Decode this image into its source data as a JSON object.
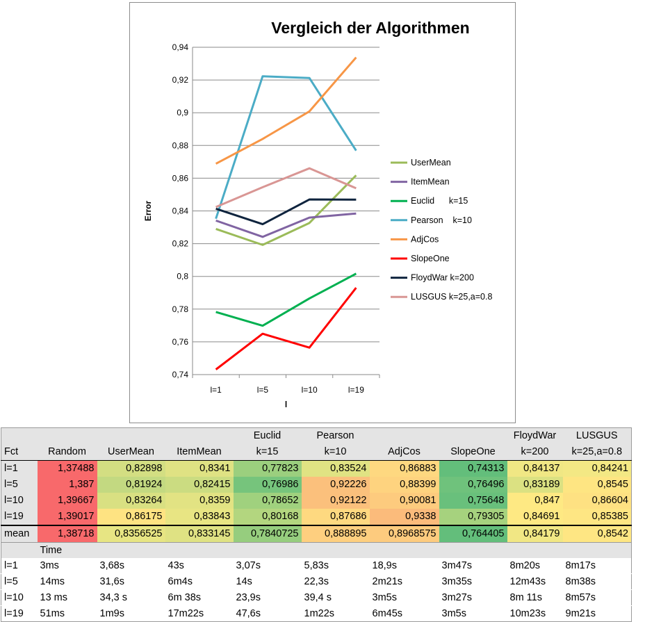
{
  "chart_data": {
    "type": "line",
    "title": "Vergleich der Algorithmen",
    "xlabel": "l",
    "ylabel": "Error",
    "categories": [
      "l=1",
      "l=5",
      "l=10",
      "l=19"
    ],
    "ylim": [
      0.74,
      0.94
    ],
    "yticks": [
      "0,74",
      "0,76",
      "0,78",
      "0,8",
      "0,82",
      "0,84",
      "0,86",
      "0,88",
      "0,9",
      "0,92",
      "0,94"
    ],
    "grid": true,
    "legend_position": "right",
    "series": [
      {
        "name": "UserMean",
        "color": "#9bbb59",
        "values": [
          0.82898,
          0.81924,
          0.83264,
          0.86175
        ]
      },
      {
        "name": "ItemMean",
        "color": "#8064a2",
        "values": [
          0.8341,
          0.82415,
          0.8359,
          0.83843
        ]
      },
      {
        "name": "Euclid      k=15",
        "color": "#00b050",
        "values": [
          0.77823,
          0.76986,
          0.78652,
          0.80168
        ]
      },
      {
        "name": "Pearson    k=10",
        "color": "#4bacc6",
        "values": [
          0.83524,
          0.92226,
          0.92122,
          0.87686
        ]
      },
      {
        "name": "AdjCos",
        "color": "#f79646",
        "values": [
          0.86883,
          0.88399,
          0.90081,
          0.9338
        ]
      },
      {
        "name": "SlopeOne",
        "color": "#ff0000",
        "values": [
          0.74313,
          0.76496,
          0.75648,
          0.79305
        ]
      },
      {
        "name": "FloydWar k=200",
        "color": "#0f243e",
        "values": [
          0.84137,
          0.83189,
          0.847,
          0.84691
        ]
      },
      {
        "name": "LUSGUS k=25,a=0.8",
        "color": "#d99694",
        "values": [
          0.84241,
          0.8545,
          0.86604,
          0.85385
        ]
      }
    ]
  },
  "table": {
    "fct_label": "Fct",
    "columns": [
      {
        "line1": "",
        "line2": "Random"
      },
      {
        "line1": "",
        "line2": "UserMean"
      },
      {
        "line1": "",
        "line2": "ItemMean"
      },
      {
        "line1": "Euclid",
        "line2": "k=15"
      },
      {
        "line1": "Pearson",
        "line2": "k=10"
      },
      {
        "line1": "",
        "line2": "AdjCos"
      },
      {
        "line1": "",
        "line2": "SlopeOne"
      },
      {
        "line1": "FloydWar",
        "line2": "k=200"
      },
      {
        "line1": "LUSGUS",
        "line2": "k=25,a=0.8"
      }
    ],
    "error_rows": [
      {
        "label": "l=1",
        "cells": [
          "1,37488",
          "0,82898",
          "0,8341",
          "0,77823",
          "0,83524",
          "0,86883",
          "0,74313",
          "0,84137",
          "0,84241"
        ],
        "colors": [
          "#f8696b",
          "#d3de82",
          "#dfe283",
          "#9bcf7e",
          "#e0e383",
          "#fed880",
          "#63be7b",
          "#f0e784",
          "#f3e884"
        ]
      },
      {
        "label": "l=5",
        "cells": [
          "1,387",
          "0,81924",
          "0,82415",
          "0,76986",
          "0,92226",
          "0,88399",
          "0,76496",
          "0,83189",
          "0,8545"
        ],
        "colors": [
          "#f8696b",
          "#c3d981",
          "#cbdc81",
          "#76c47c",
          "#fbc07c",
          "#fed37f",
          "#6fc27c",
          "#dbe182",
          "#fee582"
        ]
      },
      {
        "label": "l=10",
        "cells": [
          "1,39667",
          "0,83264",
          "0,8359",
          "0,78652",
          "0,92122",
          "0,90081",
          "0,75648",
          "0,847",
          "0,86604"
        ],
        "colors": [
          "#f8696b",
          "#d9e082",
          "#e2e383",
          "#a0d17e",
          "#fbc07c",
          "#fdcb7e",
          "#69c07c",
          "#fee983",
          "#fee182"
        ]
      },
      {
        "label": "l=19",
        "cells": [
          "1,39017",
          "0,86175",
          "0,83843",
          "0,80168",
          "0,87686",
          "0,9338",
          "0,79305",
          "0,84691",
          "0,85385"
        ],
        "colors": [
          "#f8696b",
          "#fee382",
          "#e8e583",
          "#b3d67f",
          "#fed980",
          "#fbbb7b",
          "#a6d27e",
          "#fee983",
          "#fee683"
        ]
      }
    ],
    "mean_row": {
      "label": "mean",
      "cells": [
        "1,38718",
        "0,8356525",
        "0,833145",
        "0,7840725",
        "0,888895",
        "0,8968575",
        "0,764405",
        "0,84179",
        "0,8542"
      ],
      "colors": [
        "#f8696b",
        "#e7e583",
        "#dfe283",
        "#96cd7e",
        "#fecf7f",
        "#fdcb7e",
        "#63be7b",
        "#f1e784",
        "#fee683"
      ]
    },
    "time_label": "Time",
    "time_rows": [
      {
        "label": "l=1",
        "cells": [
          "3ms",
          "3,68s",
          "43s",
          "3,07s",
          "5,83s",
          "18,9s",
          "3m47s",
          "8m20s",
          "8m17s"
        ]
      },
      {
        "label": "l=5",
        "cells": [
          "14ms",
          "31,6s",
          "6m4s",
          "14s",
          "22,3s",
          "2m21s",
          "3m35s",
          "12m43s",
          "8m38s"
        ]
      },
      {
        "label": "l=10",
        "cells": [
          "13 ms",
          "34,3 s",
          "6m 38s",
          "23,9s",
          "39,4 s",
          "3m5s",
          "3m27s",
          "8m 11s",
          "8m57s"
        ]
      },
      {
        "label": "l=19",
        "cells": [
          "51ms",
          "1m9s",
          "17m22s",
          "47,6s",
          "1m22s",
          "6m45s",
          "3m5s",
          "10m23s",
          "9m21s"
        ]
      }
    ]
  }
}
